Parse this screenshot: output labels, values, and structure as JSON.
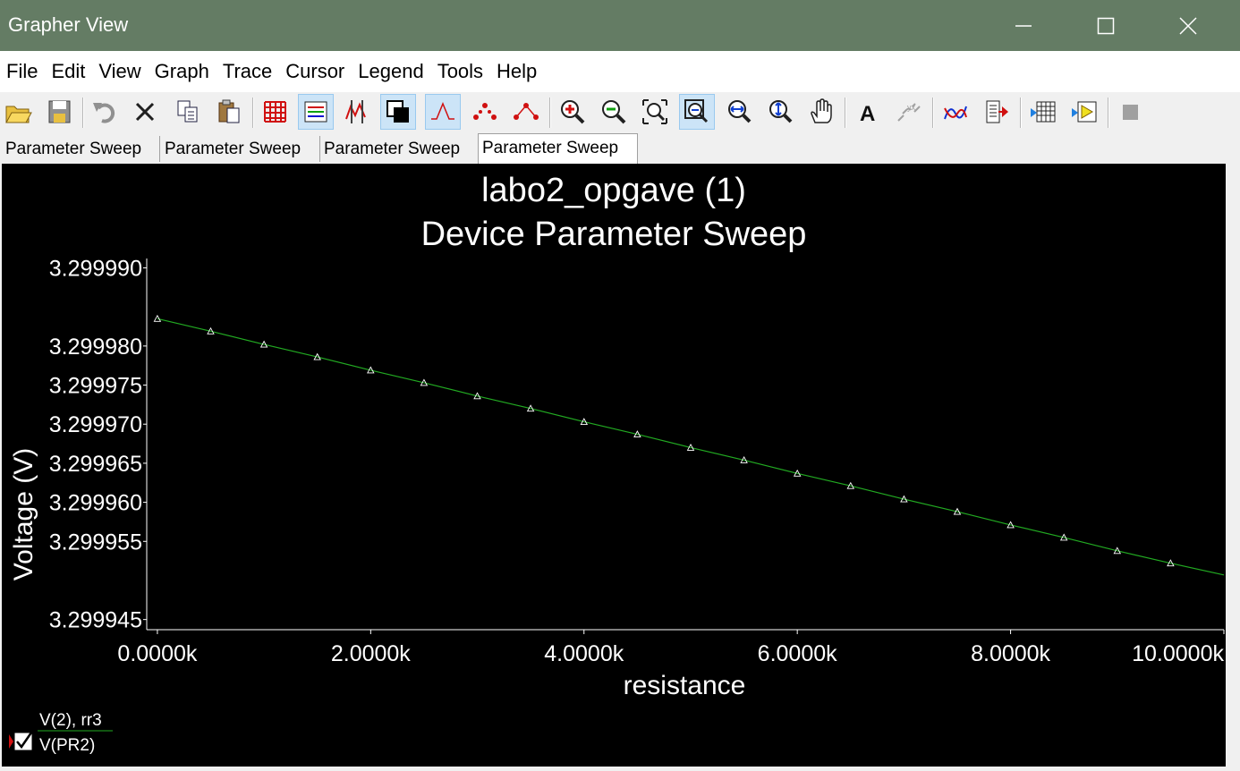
{
  "window": {
    "title": "Grapher View"
  },
  "menu": [
    "File",
    "Edit",
    "View",
    "Graph",
    "Trace",
    "Cursor",
    "Legend",
    "Tools",
    "Help"
  ],
  "toolbar": {
    "icons": [
      "open-icon",
      "save-icon",
      "undo-icon",
      "delete-icon",
      "copy-icon",
      "paste-icon",
      "grid-icon",
      "legend-icon",
      "cursors-icon",
      "black-background-icon",
      "select-marks-icon",
      "show-markers-icon",
      "show-data-points-icon",
      "zoom-in-icon",
      "zoom-out-icon",
      "zoom-area-icon",
      "zoom-full-icon",
      "zoom-x-icon",
      "zoom-y-icon",
      "pan-icon",
      "text-icon",
      "text-label-icon",
      "overlay-traces-icon",
      "export-icon",
      "export-spreadsheet-icon",
      "export-labview-icon",
      "stop-icon"
    ],
    "active": [
      "legend-icon",
      "black-background-icon",
      "select-marks-icon",
      "zoom-full-icon"
    ]
  },
  "tabs": [
    {
      "label": "Parameter Sweep",
      "active": false
    },
    {
      "label": "Parameter Sweep",
      "active": false
    },
    {
      "label": "Parameter Sweep",
      "active": false
    },
    {
      "label": "Parameter Sweep",
      "active": true
    }
  ],
  "legend": {
    "group": "V(2), rr3",
    "trace": "V(PR2)",
    "checked": true,
    "trace_color": "#22aa22"
  },
  "chart_data": {
    "type": "line",
    "title": "labo2_opgave (1)",
    "subtitle": "Device Parameter Sweep",
    "xlabel": "resistance",
    "ylabel": "Voltage (V)",
    "xlim": [
      -0.1,
      10.0
    ],
    "ylim": [
      3.2999437,
      3.2999912
    ],
    "x_unit": "k",
    "x_ticks": [
      0,
      2,
      4,
      6,
      8,
      10
    ],
    "x_tick_labels": [
      "0.0000k",
      "2.0000k",
      "4.0000k",
      "6.0000k",
      "8.0000k",
      "10.0000k"
    ],
    "y_ticks": [
      3.299945,
      3.299955,
      3.29996,
      3.299965,
      3.29997,
      3.299975,
      3.29998,
      3.29999
    ],
    "y_tick_labels": [
      "3.299945",
      "3.299955",
      "3.299960",
      "3.299965",
      "3.299970",
      "3.299975",
      "3.299980",
      "3.299990"
    ],
    "grid": false,
    "background": "#000000",
    "series": [
      {
        "name": "V(PR2)",
        "color": "#22aa22",
        "marker": "triangle",
        "marker_color": "#ffffff",
        "x": [
          0.0,
          0.5,
          1.0,
          1.5,
          2.0,
          2.5,
          3.0,
          3.5,
          4.0,
          4.5,
          5.0,
          5.5,
          6.0,
          6.5,
          7.0,
          7.5,
          8.0,
          8.5,
          9.0,
          9.5
        ],
        "y": [
          3.2999835,
          3.2999819,
          3.2999802,
          3.2999786,
          3.2999769,
          3.2999753,
          3.2999736,
          3.299972,
          3.2999703,
          3.2999687,
          3.299967,
          3.2999654,
          3.2999637,
          3.2999621,
          3.2999604,
          3.2999588,
          3.2999571,
          3.2999555,
          3.2999538,
          3.2999522
        ],
        "line_end": {
          "x": 10.0,
          "y": 3.2999507
        }
      }
    ]
  }
}
